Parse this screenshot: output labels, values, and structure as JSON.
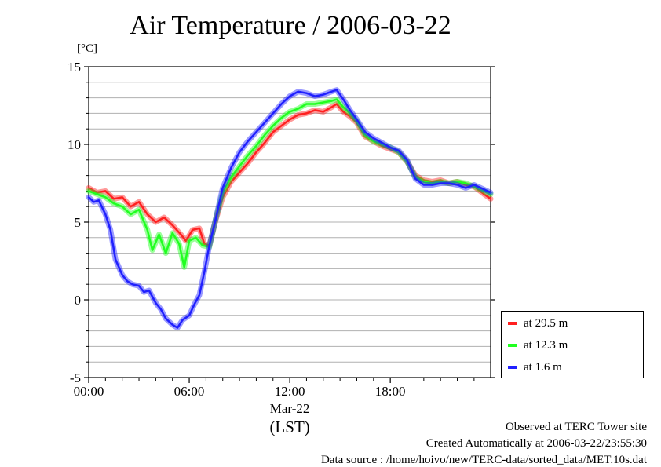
{
  "chart_data": {
    "type": "line",
    "title": "Air Temperature / 2006-03-22",
    "ylabel": "[°C]",
    "ylim": [
      -5,
      15
    ],
    "yticks": [
      "-5",
      "0",
      "5",
      "10",
      "15"
    ],
    "xlim": [
      0,
      23.99
    ],
    "xticks": [
      "00:00",
      "06:00",
      "12:00",
      "18:00"
    ],
    "xlabel_date": "Mar-22",
    "xlabel_tz": "(LST)",
    "grid": true,
    "legend_position": "right-bottom, outside plot",
    "series": [
      {
        "name": "at 29.5 m",
        "color": "#ff2020",
        "points": [
          [
            0,
            7.2
          ],
          [
            0.5,
            6.9
          ],
          [
            1,
            7.0
          ],
          [
            1.5,
            6.5
          ],
          [
            2,
            6.6
          ],
          [
            2.5,
            6.0
          ],
          [
            3,
            6.3
          ],
          [
            3.5,
            5.5
          ],
          [
            4,
            5.0
          ],
          [
            4.5,
            5.3
          ],
          [
            5,
            4.8
          ],
          [
            5.5,
            4.2
          ],
          [
            5.8,
            3.8
          ],
          [
            6.2,
            4.5
          ],
          [
            6.6,
            4.6
          ],
          [
            6.9,
            3.6
          ],
          [
            7.2,
            3.5
          ],
          [
            7.6,
            5.2
          ],
          [
            8,
            6.6
          ],
          [
            8.5,
            7.6
          ],
          [
            9,
            8.2
          ],
          [
            9.5,
            8.8
          ],
          [
            10,
            9.5
          ],
          [
            10.5,
            10.1
          ],
          [
            11,
            10.8
          ],
          [
            11.5,
            11.2
          ],
          [
            12,
            11.6
          ],
          [
            12.5,
            11.9
          ],
          [
            13,
            12.0
          ],
          [
            13.5,
            12.2
          ],
          [
            14,
            12.1
          ],
          [
            14.5,
            12.4
          ],
          [
            14.8,
            12.6
          ],
          [
            15.2,
            12.1
          ],
          [
            15.6,
            11.8
          ],
          [
            16,
            11.4
          ],
          [
            16.5,
            10.5
          ],
          [
            17,
            10.2
          ],
          [
            17.5,
            9.9
          ],
          [
            18,
            9.7
          ],
          [
            18.5,
            9.5
          ],
          [
            19,
            8.9
          ],
          [
            19.5,
            8.0
          ],
          [
            20,
            7.7
          ],
          [
            20.5,
            7.6
          ],
          [
            21,
            7.7
          ],
          [
            21.5,
            7.5
          ],
          [
            22,
            7.6
          ],
          [
            22.5,
            7.4
          ],
          [
            23,
            7.3
          ],
          [
            23.6,
            6.8
          ],
          [
            23.99,
            6.5
          ]
        ]
      },
      {
        "name": "at 12.3 m",
        "color": "#20ff20",
        "points": [
          [
            0,
            7.0
          ],
          [
            0.5,
            6.8
          ],
          [
            1,
            6.6
          ],
          [
            1.5,
            6.2
          ],
          [
            2,
            6.0
          ],
          [
            2.5,
            5.5
          ],
          [
            3,
            5.8
          ],
          [
            3.5,
            4.5
          ],
          [
            3.8,
            3.2
          ],
          [
            4.2,
            4.2
          ],
          [
            4.6,
            3.0
          ],
          [
            5,
            4.3
          ],
          [
            5.4,
            3.6
          ],
          [
            5.7,
            2.1
          ],
          [
            6,
            3.8
          ],
          [
            6.4,
            4.0
          ],
          [
            6.8,
            3.5
          ],
          [
            7.2,
            3.4
          ],
          [
            7.6,
            5.3
          ],
          [
            8,
            6.9
          ],
          [
            8.5,
            7.9
          ],
          [
            9,
            8.6
          ],
          [
            9.5,
            9.3
          ],
          [
            10,
            9.9
          ],
          [
            10.5,
            10.6
          ],
          [
            11,
            11.2
          ],
          [
            11.5,
            11.7
          ],
          [
            12,
            12.1
          ],
          [
            12.5,
            12.3
          ],
          [
            13,
            12.6
          ],
          [
            13.5,
            12.6
          ],
          [
            14,
            12.7
          ],
          [
            14.5,
            12.8
          ],
          [
            14.8,
            12.9
          ],
          [
            15.2,
            12.4
          ],
          [
            15.6,
            12.0
          ],
          [
            16,
            11.5
          ],
          [
            16.5,
            10.6
          ],
          [
            17,
            10.2
          ],
          [
            17.5,
            10.0
          ],
          [
            18,
            9.8
          ],
          [
            18.5,
            9.5
          ],
          [
            19,
            8.9
          ],
          [
            19.5,
            7.9
          ],
          [
            20,
            7.6
          ],
          [
            20.5,
            7.5
          ],
          [
            21,
            7.6
          ],
          [
            21.5,
            7.5
          ],
          [
            22,
            7.6
          ],
          [
            22.5,
            7.5
          ],
          [
            23,
            7.3
          ],
          [
            23.6,
            7.0
          ],
          [
            23.99,
            6.8
          ]
        ]
      },
      {
        "name": "at 1.6 m",
        "color": "#2020ff",
        "points": [
          [
            0,
            6.6
          ],
          [
            0.3,
            6.3
          ],
          [
            0.6,
            6.4
          ],
          [
            1,
            5.5
          ],
          [
            1.3,
            4.5
          ],
          [
            1.6,
            2.6
          ],
          [
            2,
            1.6
          ],
          [
            2.3,
            1.2
          ],
          [
            2.6,
            1.0
          ],
          [
            3,
            0.9
          ],
          [
            3.3,
            0.5
          ],
          [
            3.6,
            0.6
          ],
          [
            4,
            -0.2
          ],
          [
            4.3,
            -0.6
          ],
          [
            4.6,
            -1.2
          ],
          [
            5,
            -1.6
          ],
          [
            5.3,
            -1.8
          ],
          [
            5.6,
            -1.3
          ],
          [
            6,
            -1.0
          ],
          [
            6.3,
            -0.3
          ],
          [
            6.6,
            0.3
          ],
          [
            6.9,
            1.8
          ],
          [
            7.2,
            3.5
          ],
          [
            7.6,
            5.3
          ],
          [
            8,
            7.2
          ],
          [
            8.5,
            8.5
          ],
          [
            9,
            9.5
          ],
          [
            9.5,
            10.2
          ],
          [
            10,
            10.8
          ],
          [
            10.5,
            11.4
          ],
          [
            11,
            12.0
          ],
          [
            11.5,
            12.6
          ],
          [
            12,
            13.1
          ],
          [
            12.5,
            13.4
          ],
          [
            13,
            13.3
          ],
          [
            13.5,
            13.1
          ],
          [
            14,
            13.2
          ],
          [
            14.5,
            13.4
          ],
          [
            14.8,
            13.5
          ],
          [
            15.2,
            12.9
          ],
          [
            15.6,
            12.2
          ],
          [
            16,
            11.6
          ],
          [
            16.5,
            10.8
          ],
          [
            17,
            10.4
          ],
          [
            17.5,
            10.1
          ],
          [
            18,
            9.8
          ],
          [
            18.5,
            9.6
          ],
          [
            19,
            9.0
          ],
          [
            19.5,
            7.8
          ],
          [
            20,
            7.4
          ],
          [
            20.5,
            7.4
          ],
          [
            21,
            7.5
          ],
          [
            21.5,
            7.5
          ],
          [
            22,
            7.4
          ],
          [
            22.5,
            7.2
          ],
          [
            23,
            7.4
          ],
          [
            23.6,
            7.1
          ],
          [
            23.99,
            6.9
          ]
        ]
      }
    ]
  },
  "footer": {
    "line1": "Observed at TERC Tower site",
    "line2": "Created Automatically at 2006-03-22/23:55:30",
    "line3": "Data source : /home/hoivo/new/TERC-data/sorted_data/MET.10s.dat"
  }
}
